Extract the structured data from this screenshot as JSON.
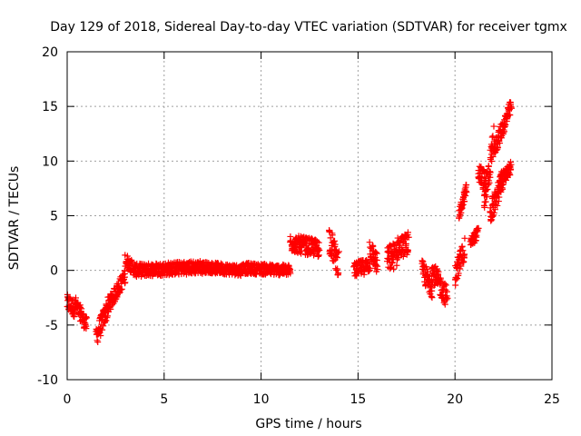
{
  "colors": {
    "series": "#ff0000",
    "axis": "#000000",
    "grid": "#a0a0a0",
    "background": "#ffffff"
  },
  "chart_data": {
    "type": "scatter",
    "title": "Day 129 of 2018, Sidereal Day-to-day VTEC variation (SDTVAR) for receiver tgmx",
    "xlabel": "GPS time / hours",
    "ylabel": "SDTVAR / TECUs",
    "xlim": [
      0,
      25
    ],
    "ylim": [
      -10,
      20
    ],
    "xticks": [
      0,
      5,
      10,
      15,
      20,
      25
    ],
    "yticks": [
      -10,
      -5,
      0,
      5,
      10,
      15,
      20
    ],
    "grid": true,
    "marker": "plus",
    "series": [
      {
        "name": "SDTVAR",
        "segments": [
          {
            "x0": 0.0,
            "x1": 0.4,
            "from": -3.0,
            "to": -3.5,
            "spread": 1.6
          },
          {
            "x0": 0.4,
            "x1": 1.0,
            "from": -3.0,
            "to": -5.0,
            "spread": 1.4
          },
          {
            "x0": 1.5,
            "x1": 2.2,
            "from": -6.0,
            "to": -3.0,
            "spread": 1.8
          },
          {
            "x0": 2.2,
            "x1": 3.0,
            "from": -3.0,
            "to": -0.5,
            "spread": 1.4
          },
          {
            "x0": 3.0,
            "x1": 3.5,
            "from": 1.0,
            "to": 0.0,
            "spread": 1.2
          },
          {
            "x0": 3.5,
            "x1": 7.0,
            "from": 0.0,
            "to": 0.3,
            "spread": 1.2
          },
          {
            "x0": 7.0,
            "x1": 9.0,
            "from": 0.3,
            "to": 0.0,
            "spread": 1.0
          },
          {
            "x0": 9.0,
            "x1": 11.5,
            "from": 0.2,
            "to": 0.0,
            "spread": 1.0
          },
          {
            "x0": 11.5,
            "x1": 13.0,
            "from": 2.5,
            "to": 2.0,
            "spread": 1.6
          },
          {
            "x0": 13.5,
            "x1": 14.0,
            "from": 3.0,
            "to": 0.5,
            "spread": 2.5
          },
          {
            "x0": 14.8,
            "x1": 15.6,
            "from": 0.0,
            "to": 0.5,
            "spread": 1.4
          },
          {
            "x0": 15.6,
            "x1": 16.0,
            "from": 2.0,
            "to": 0.5,
            "spread": 2.0
          },
          {
            "x0": 16.5,
            "x1": 17.0,
            "from": 1.0,
            "to": 1.5,
            "spread": 2.5
          },
          {
            "x0": 17.0,
            "x1": 17.6,
            "from": 2.0,
            "to": 2.5,
            "spread": 2.0
          },
          {
            "x0": 18.3,
            "x1": 18.8,
            "from": 0.0,
            "to": -1.5,
            "spread": 2.0
          },
          {
            "x0": 18.8,
            "x1": 19.6,
            "from": 0.0,
            "to": -2.5,
            "spread": 2.0
          },
          {
            "x0": 20.0,
            "x1": 20.5,
            "from": -0.5,
            "to": 2.0,
            "spread": 2.0
          },
          {
            "x0": 20.2,
            "x1": 20.6,
            "from": 5.0,
            "to": 7.5,
            "spread": 1.0
          },
          {
            "x0": 20.8,
            "x1": 21.2,
            "from": 2.5,
            "to": 3.5,
            "spread": 1.0
          },
          {
            "x0": 21.2,
            "x1": 21.6,
            "from": 9.0,
            "to": 8.0,
            "spread": 2.0
          },
          {
            "x0": 21.5,
            "x1": 22.0,
            "from": 6.0,
            "to": 12.0,
            "spread": 2.5
          },
          {
            "x0": 21.8,
            "x1": 22.5,
            "from": 5.0,
            "to": 8.5,
            "spread": 2.0
          },
          {
            "x0": 22.0,
            "x1": 22.9,
            "from": 11.0,
            "to": 15.0,
            "spread": 1.5
          },
          {
            "x0": 22.3,
            "x1": 22.9,
            "from": 8.0,
            "to": 9.5,
            "spread": 1.2
          }
        ]
      }
    ]
  }
}
